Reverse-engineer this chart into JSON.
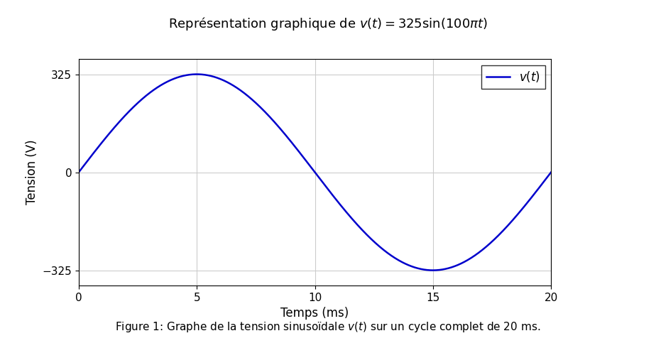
{
  "title": "Représentation graphique de $v(t) = 325\\sin(100\\pi t)$",
  "xlabel": "Temps (ms)",
  "ylabel": "Tension (V)",
  "amplitude": 325,
  "frequency_hz": 50,
  "t_start_ms": 0,
  "t_end_ms": 20,
  "xlim": [
    0,
    20
  ],
  "ylim": [
    -375,
    375
  ],
  "xticks": [
    0,
    5,
    10,
    15,
    20
  ],
  "yticks": [
    -325,
    0,
    325
  ],
  "line_color": "#0000cc",
  "line_width": 1.8,
  "legend_label": "$v(t)$",
  "caption": "Figure 1: Graphe de la tension sinusoïdale $v(t)$ sur un cycle complet de 20 ms.",
  "grid_color": "#cccccc",
  "grid_linewidth": 0.8,
  "background_color": "#ffffff",
  "title_fontsize": 13,
  "label_fontsize": 12,
  "tick_fontsize": 11,
  "legend_fontsize": 12,
  "caption_fontsize": 11
}
